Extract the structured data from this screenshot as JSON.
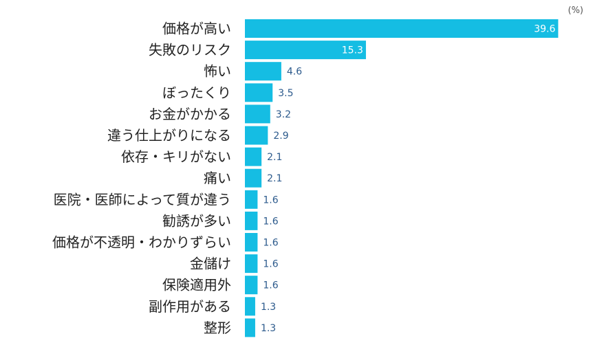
{
  "chart_data": {
    "type": "bar",
    "orientation": "horizontal",
    "unit_label": "(%)",
    "categories": [
      "価格が高い",
      "失敗のリスク",
      "怖い",
      "ぼったくり",
      "お金がかかる",
      "違う仕上がりになる",
      "依存・キリがない",
      "痛い",
      "医院・医師によって質が違う",
      "勧誘が多い",
      "価格が不透明・わかりずらい",
      "金儲け",
      "保険適用外",
      "副作用がある",
      "整形"
    ],
    "values": [
      39.6,
      15.3,
      4.6,
      3.5,
      3.2,
      2.9,
      2.1,
      2.1,
      1.6,
      1.6,
      1.6,
      1.6,
      1.6,
      1.3,
      1.3
    ],
    "value_labels": [
      "39.6",
      "15.3",
      "4.6",
      "3.5",
      "3.2",
      "2.9",
      "2.1",
      "2.1",
      "1.6",
      "1.6",
      "1.6",
      "1.6",
      "1.6",
      "1.3",
      "1.3"
    ],
    "xlim": [
      0,
      40
    ],
    "grid": false,
    "legend": "none",
    "colors": {
      "bar": "#15bde3",
      "value_label": "#2c5a8c",
      "value_label_inside": "#ffffff",
      "category_label": "#222222"
    }
  }
}
